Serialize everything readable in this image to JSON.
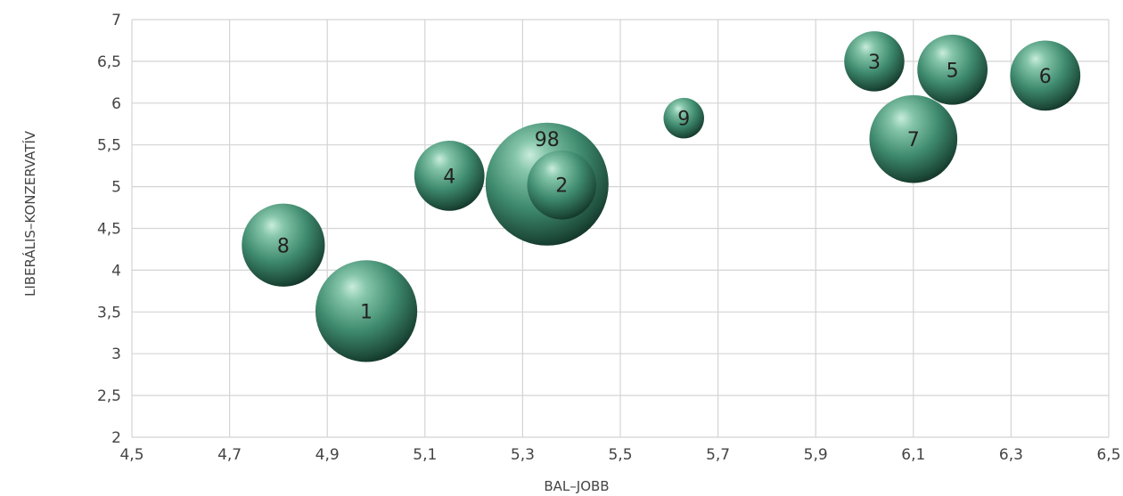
{
  "chart_data": {
    "type": "bubble",
    "title": "",
    "xlabel": "BAL–JOBB",
    "ylabel": "LIBERÁLIS–KONZERVATÍV",
    "xlim": [
      4.5,
      6.5
    ],
    "ylim": [
      2,
      7
    ],
    "x_ticks": [
      4.5,
      4.7,
      4.9,
      5.1,
      5.3,
      5.5,
      5.7,
      5.9,
      6.1,
      6.3,
      6.5
    ],
    "y_ticks": [
      2,
      2.5,
      3,
      3.5,
      4,
      4.5,
      5,
      5.5,
      6,
      6.5,
      7
    ],
    "x_tick_labels": [
      "4,5",
      "4,7",
      "4,9",
      "5,1",
      "5,3",
      "5,5",
      "5,7",
      "5,9",
      "6,1",
      "6,3",
      "6,5"
    ],
    "y_tick_labels": [
      "2",
      "2,5",
      "3",
      "3,5",
      "4",
      "4,5",
      "5",
      "5,5",
      "6",
      "6,5",
      "7"
    ],
    "grid": true,
    "bubble_color": "#3e8a6e",
    "points": [
      {
        "label": "98",
        "x": 5.35,
        "y": 5.03,
        "size": 9.2
      },
      {
        "label": "1",
        "x": 4.98,
        "y": 3.51,
        "size": 6.3
      },
      {
        "label": "7",
        "x": 6.1,
        "y": 5.57,
        "size": 4.7
      },
      {
        "label": "8",
        "x": 4.81,
        "y": 4.3,
        "size": 4.2
      },
      {
        "label": "6",
        "x": 6.37,
        "y": 6.33,
        "size": 3.0
      },
      {
        "label": "5",
        "x": 6.18,
        "y": 6.4,
        "size": 3.0
      },
      {
        "label": "4",
        "x": 5.15,
        "y": 5.13,
        "size": 3.0
      },
      {
        "label": "2",
        "x": 5.38,
        "y": 5.02,
        "size": 2.9
      },
      {
        "label": "3",
        "x": 6.02,
        "y": 6.5,
        "size": 2.2
      },
      {
        "label": "9",
        "x": 5.63,
        "y": 5.82,
        "size": 1.0
      }
    ]
  }
}
